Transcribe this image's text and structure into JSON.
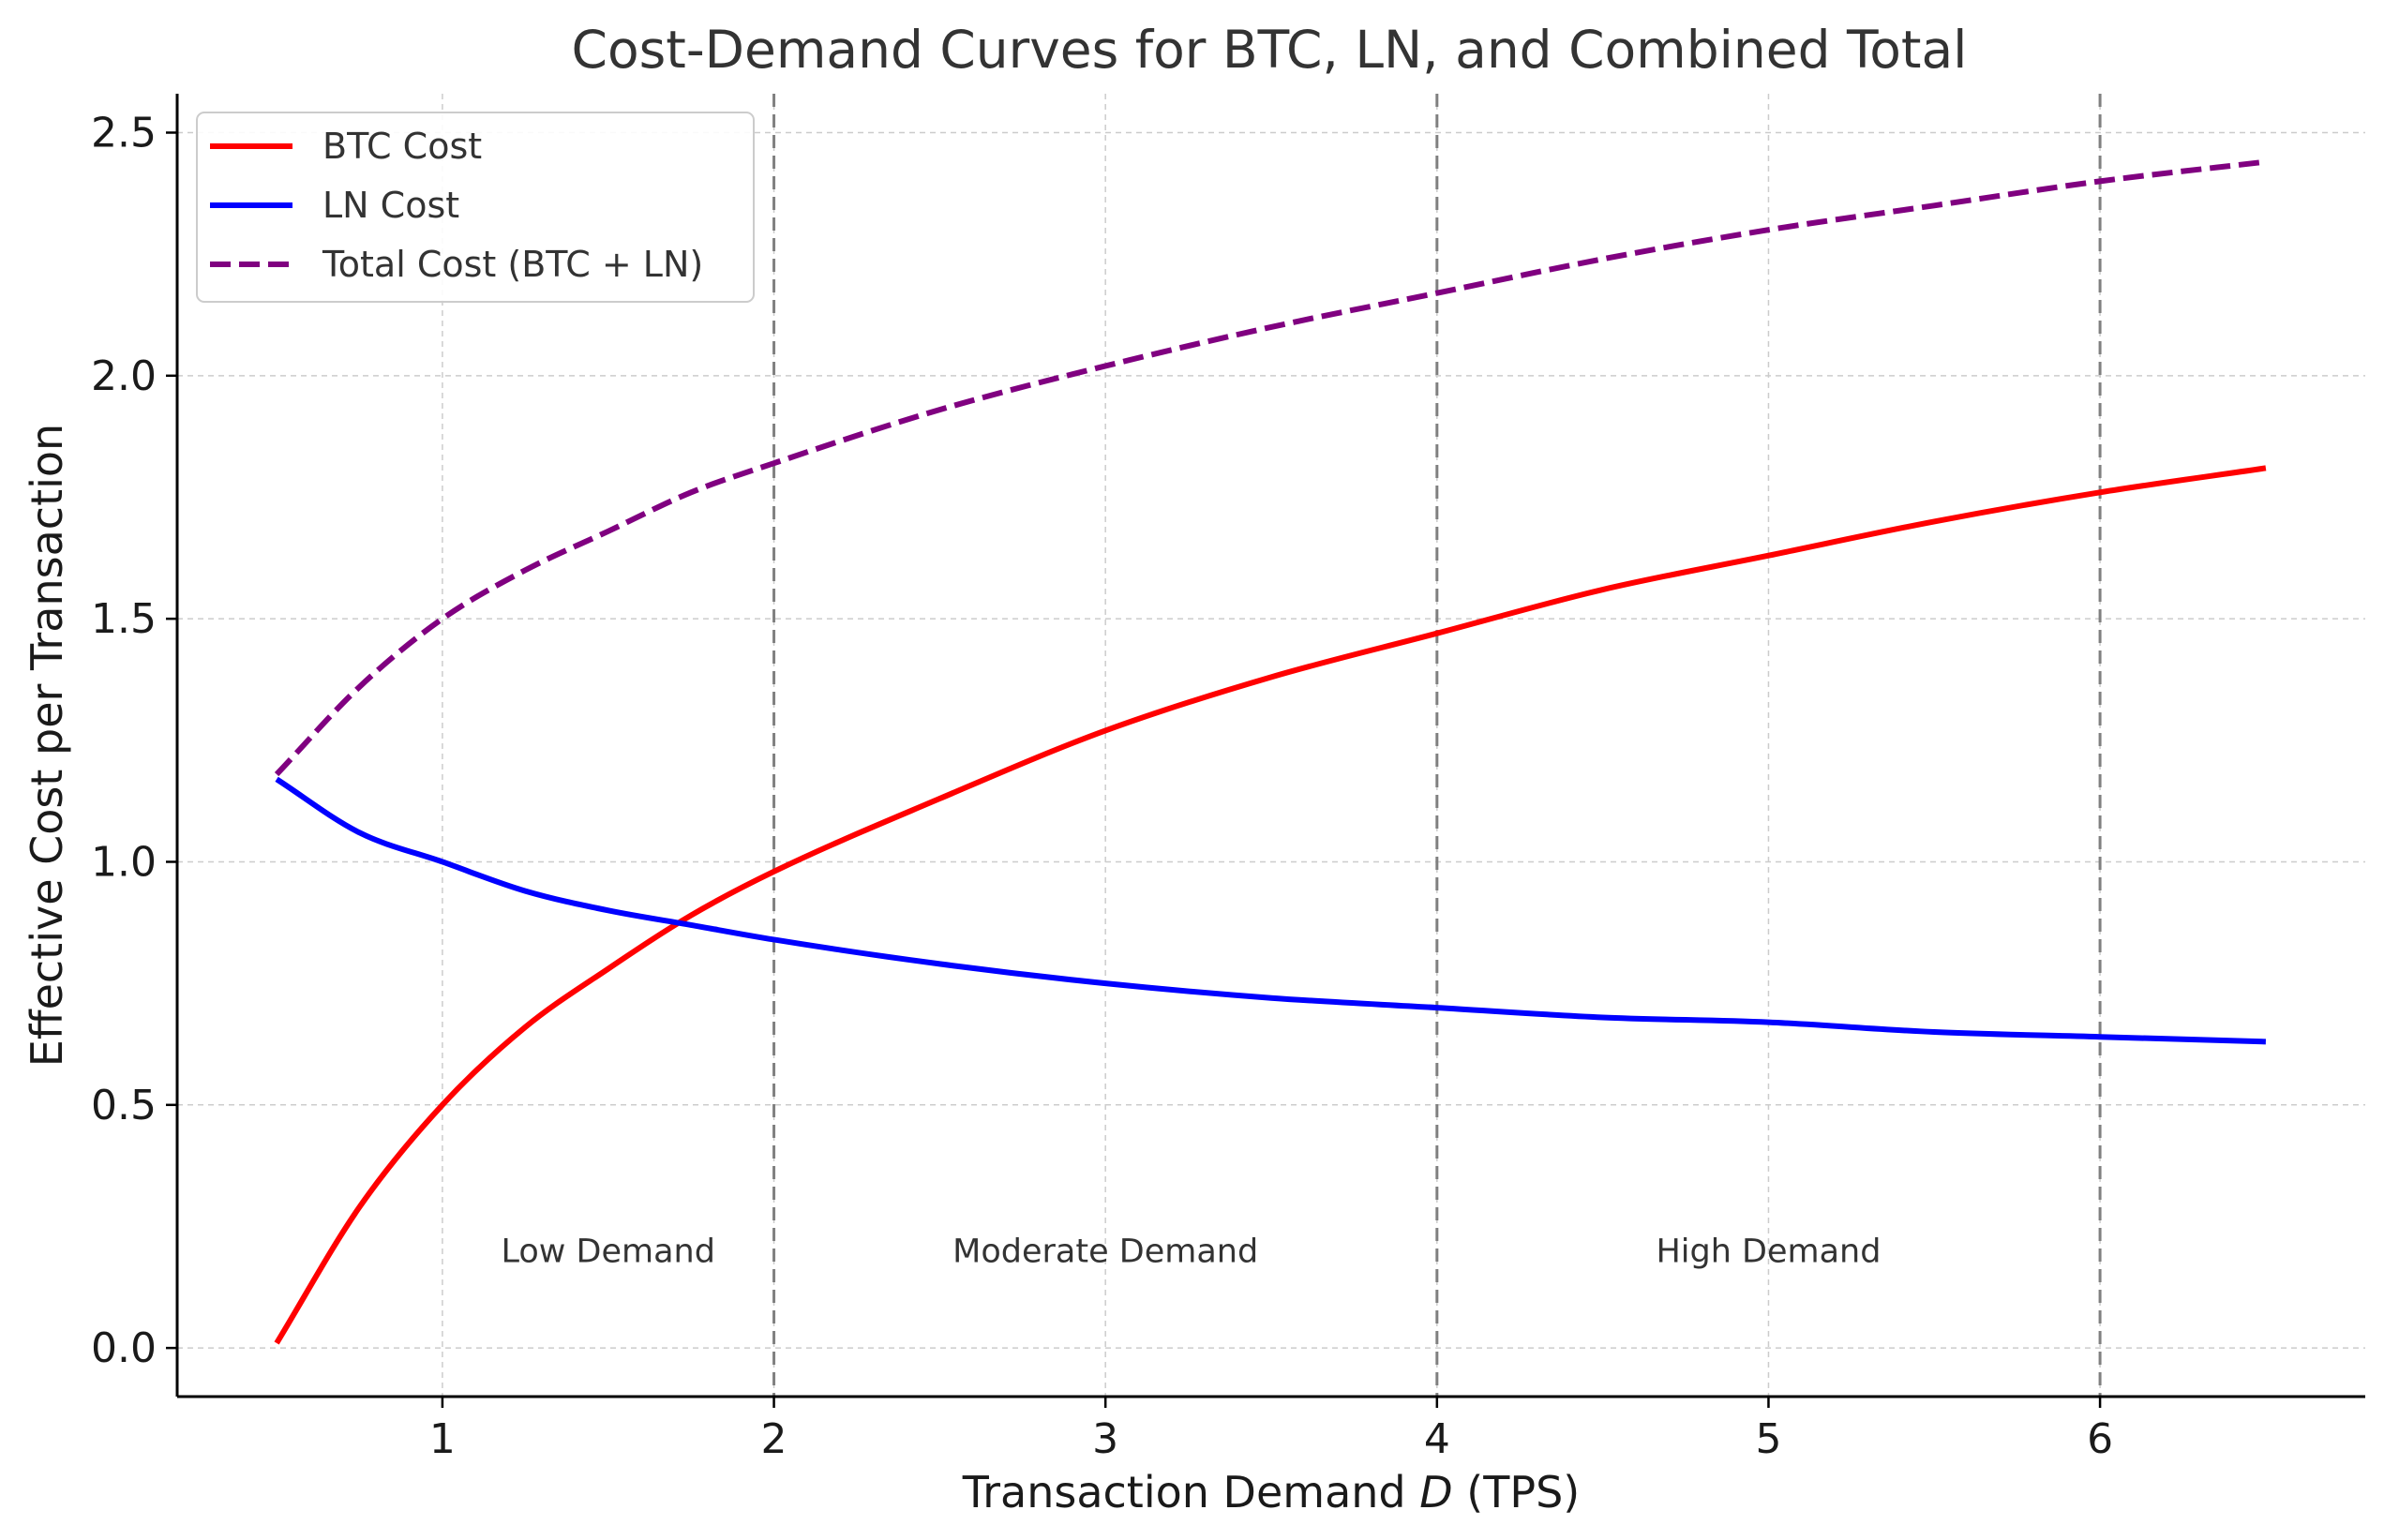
{
  "chart_data": {
    "type": "line",
    "title": "Cost-Demand Curves for BTC, LN, and Combined Total",
    "xlabel_prefix": "Transaction Demand ",
    "xlabel_var": "D",
    "xlabel_suffix": " (TPS)",
    "ylabel": "Effective Cost per Transaction",
    "xlim": [
      0.2,
      6.8
    ],
    "ylim": [
      -0.1,
      2.58
    ],
    "xticks": [
      1,
      2,
      3,
      4,
      5,
      6
    ],
    "yticks": [
      0.0,
      0.5,
      1.0,
      1.5,
      2.0,
      2.5
    ],
    "ytick_labels": [
      "0.0",
      "0.5",
      "1.0",
      "1.5",
      "2.0",
      "2.5"
    ],
    "grid": true,
    "legend_position": "upper-left",
    "series": [
      {
        "name": "BTC Cost",
        "color": "#ff0000",
        "style": "solid",
        "x": [
          0.5,
          0.75,
          1.0,
          1.25,
          1.5,
          1.75,
          2.0,
          2.5,
          3.0,
          3.5,
          4.0,
          4.5,
          5.0,
          5.5,
          6.0,
          6.5
        ],
        "y": [
          0.01,
          0.29,
          0.5,
          0.66,
          0.78,
          0.89,
          0.98,
          1.13,
          1.27,
          1.38,
          1.47,
          1.56,
          1.63,
          1.7,
          1.76,
          1.81
        ]
      },
      {
        "name": "LN Cost",
        "color": "#0000ff",
        "style": "solid",
        "x": [
          0.5,
          0.75,
          1.0,
          1.25,
          1.5,
          1.75,
          2.0,
          2.5,
          3.0,
          3.5,
          4.0,
          4.5,
          5.0,
          5.5,
          6.0,
          6.5
        ],
        "y": [
          1.17,
          1.06,
          1.0,
          0.94,
          0.9,
          0.87,
          0.84,
          0.79,
          0.75,
          0.72,
          0.7,
          0.68,
          0.67,
          0.65,
          0.64,
          0.63
        ]
      },
      {
        "name": "Total Cost (BTC + LN)",
        "color": "#800080",
        "style": "dashed",
        "x": [
          0.5,
          0.75,
          1.0,
          1.25,
          1.5,
          1.75,
          2.0,
          2.5,
          3.0,
          3.5,
          4.0,
          4.5,
          5.0,
          5.5,
          6.0,
          6.5
        ],
        "y": [
          1.18,
          1.36,
          1.5,
          1.6,
          1.68,
          1.76,
          1.82,
          1.93,
          2.02,
          2.1,
          2.17,
          2.24,
          2.3,
          2.35,
          2.4,
          2.44
        ]
      }
    ],
    "vlines": [
      2,
      4,
      6
    ],
    "regions": [
      {
        "label": "Low Demand",
        "x": 1.5,
        "y": 0.2
      },
      {
        "label": "Moderate Demand",
        "x": 3.0,
        "y": 0.2
      },
      {
        "label": "High Demand",
        "x": 5.0,
        "y": 0.2
      }
    ]
  }
}
